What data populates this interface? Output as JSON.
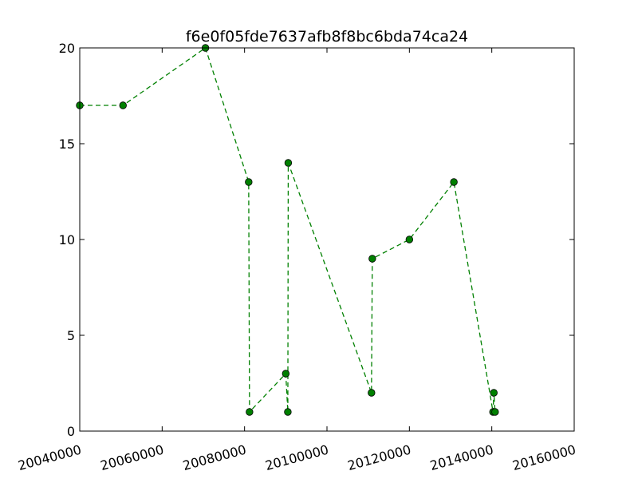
{
  "chart_data": {
    "type": "line",
    "title": "f6e0f05fde7637afb8f8bc6bda74ca24",
    "xlabel": "",
    "ylabel": "",
    "xlim": [
      20040000,
      20160000
    ],
    "ylim": [
      0,
      20
    ],
    "x_ticks": [
      20040000,
      20060000,
      20080000,
      20100000,
      20120000,
      20140000,
      20160000
    ],
    "x_tick_labels": [
      "20040000",
      "20060000",
      "20080000",
      "20100000",
      "20120000",
      "20140000",
      "20160000"
    ],
    "y_ticks": [
      0,
      5,
      10,
      15,
      20
    ],
    "y_tick_labels": [
      "0",
      "5",
      "10",
      "15",
      "20"
    ],
    "grid": false,
    "series": [
      {
        "color": "#008000",
        "line_style": "dashed",
        "marker": "circle",
        "points": [
          {
            "x": 20040000,
            "y": 17
          },
          {
            "x": 20050500,
            "y": 17
          },
          {
            "x": 20070500,
            "y": 20
          },
          {
            "x": 20081000,
            "y": 13
          },
          {
            "x": 20081200,
            "y": 1
          },
          {
            "x": 20090000,
            "y": 3
          },
          {
            "x": 20090500,
            "y": 1
          },
          {
            "x": 20090600,
            "y": 14
          },
          {
            "x": 20110800,
            "y": 2
          },
          {
            "x": 20111000,
            "y": 9
          },
          {
            "x": 20120000,
            "y": 10
          },
          {
            "x": 20130800,
            "y": 13
          },
          {
            "x": 20140300,
            "y": 1
          },
          {
            "x": 20140500,
            "y": 2
          },
          {
            "x": 20140800,
            "y": 1
          }
        ]
      }
    ]
  }
}
